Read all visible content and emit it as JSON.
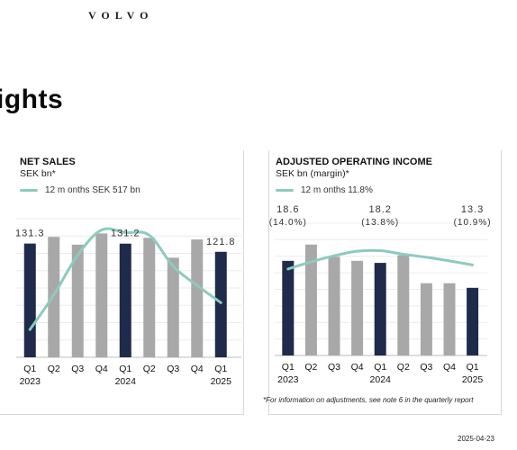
{
  "header": {
    "logo_text": "VOLVO",
    "title": "ights"
  },
  "footnote": "*For information on adjustments, see note 6 in the quarterly report",
  "date": "2025-04-23",
  "colors": {
    "dark_bar": "#1f2b4b",
    "grey_bar": "#a8a8a8",
    "line": "#8ccbbf"
  },
  "chart_data": [
    {
      "type": "bar",
      "title": "NET SALES",
      "subtitle": "SEK bn*",
      "legend": [
        {
          "label": "12 m onths SEK 517 bn",
          "color": "#8ccbbf"
        }
      ],
      "categories": [
        "Q1",
        "Q2",
        "Q3",
        "Q4",
        "Q1",
        "Q2",
        "Q3",
        "Q4",
        "Q1"
      ],
      "year_labels": [
        {
          "index": 0,
          "label": "2023"
        },
        {
          "index": 4,
          "label": "2024"
        },
        {
          "index": 8,
          "label": "2025"
        }
      ],
      "series": [
        {
          "type": "bar",
          "values": [
            131.3,
            139.0,
            130.0,
            143.0,
            131.2,
            138.0,
            115.0,
            136.0,
            121.8
          ],
          "highlight_indices": [
            0,
            4,
            8
          ]
        },
        {
          "type": "line",
          "name": "12 m onths SEK 517 bn",
          "values": [
            32,
            72,
            118,
            147,
            144,
            141,
            105,
            83,
            63
          ]
        }
      ],
      "data_labels": [
        {
          "index": 0,
          "label": "131.3"
        },
        {
          "index": 4,
          "label": "131.2"
        },
        {
          "index": 8,
          "label": "121.8"
        }
      ],
      "ylim": [
        0,
        160
      ]
    },
    {
      "type": "bar",
      "title": "ADJUSTED OPERATING INCOME",
      "subtitle": "SEK bn (margin)*",
      "legend": [
        {
          "label": "12 m onths 11.8%",
          "color": "#8ccbbf"
        }
      ],
      "categories": [
        "Q1",
        "Q2",
        "Q3",
        "Q4",
        "Q1",
        "Q2",
        "Q3",
        "Q4",
        "Q1"
      ],
      "year_labels": [
        {
          "index": 0,
          "label": "2023"
        },
        {
          "index": 4,
          "label": "2024"
        },
        {
          "index": 8,
          "label": "2025"
        }
      ],
      "series": [
        {
          "type": "bar",
          "values": [
            18.6,
            21.8,
            19.4,
            18.6,
            18.2,
            19.7,
            14.2,
            14.2,
            13.3
          ],
          "highlight_indices": [
            0,
            4,
            8
          ]
        },
        {
          "type": "line",
          "name": "12 m onths 11.8%",
          "values": [
            17.0,
            18.4,
            19.6,
            20.5,
            20.6,
            19.9,
            19.3,
            18.6,
            17.8
          ]
        }
      ],
      "data_labels": [
        {
          "index": 0,
          "label": "18.6",
          "sublabel": "(14.0%)"
        },
        {
          "index": 4,
          "label": "18.2",
          "sublabel": "(13.8%)"
        },
        {
          "index": 8,
          "label": "13.3",
          "sublabel": "(10.9%)"
        }
      ],
      "ylim": [
        0,
        26
      ]
    }
  ]
}
